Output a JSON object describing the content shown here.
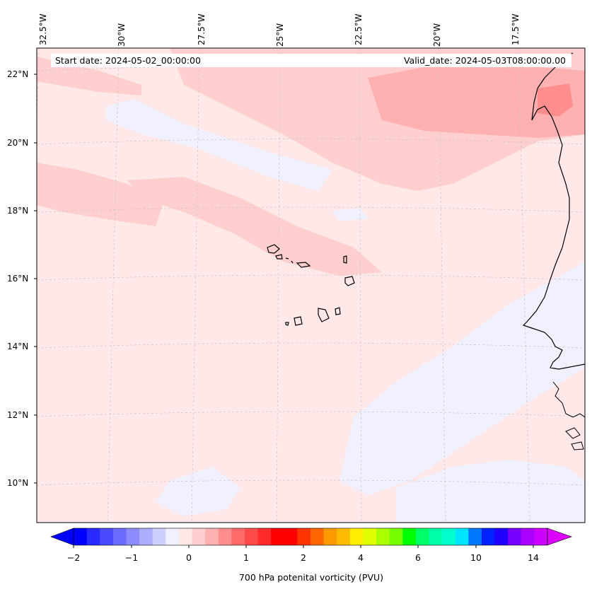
{
  "map": {
    "start_date": "Start date: 2024-05-02_00:00:00",
    "valid_date": "Valid_date: 2024-05-03T08:00:00.00",
    "lon_labels": [
      "32.5°W",
      "30°W",
      "27.5°W",
      "25°W",
      "22.5°W",
      "20°W",
      "17.5°W"
    ],
    "lat_labels": [
      "22°N",
      "20°N",
      "18°N",
      "16°N",
      "14°N",
      "12°N",
      "10°N"
    ],
    "colors": {
      "background_field": "#ffe8e8",
      "light_positive": "#ffcfcf",
      "medium_positive": "#ffb0b0",
      "strong_positive": "#ff8f8f",
      "slightly_negative": "#f0f0ff",
      "coastline": "#000000"
    }
  },
  "colorbar": {
    "label": "700 hPa potenital vorticity (PVU)",
    "ticks": [
      "−2",
      "−1",
      "0",
      "1",
      "2",
      "4",
      "6",
      "10",
      "14"
    ],
    "colors": [
      "#0000ff",
      "#2a2aff",
      "#4a4aff",
      "#6b6bff",
      "#8c8cff",
      "#adadff",
      "#cfcfff",
      "#f0f0ff",
      "#ffe8e8",
      "#ffcfcf",
      "#ffb0b0",
      "#ff8f8f",
      "#ff6b6b",
      "#ff4a4a",
      "#ff2a2a",
      "#ff0000",
      "#ff0000",
      "#ff3300",
      "#ff6600",
      "#ff9900",
      "#ffbb00",
      "#ffee00",
      "#ddff00",
      "#aaff00",
      "#77ff00",
      "#00ff00",
      "#00ff66",
      "#00ffaa",
      "#00ffcc",
      "#00e5ff",
      "#0077ff",
      "#0022ff",
      "#2200ff",
      "#7700ff",
      "#aa00ff",
      "#cc00ff"
    ]
  }
}
